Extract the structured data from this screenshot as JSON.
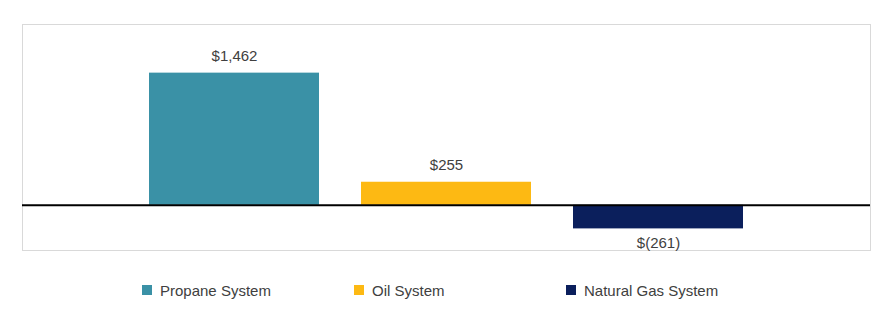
{
  "chart_data": {
    "type": "bar",
    "categories": [
      "Propane System",
      "Oil System",
      "Natural Gas System"
    ],
    "values": [
      1462,
      255,
      -261
    ],
    "value_labels": [
      "$1,462",
      "$255",
      "$(261)"
    ],
    "colors": [
      "#3a91a6",
      "#fdb913",
      "#0b1f5c"
    ],
    "ylim": [
      -500,
      2000
    ],
    "yticks": [
      0
    ],
    "tick_labels": false,
    "data_labels": true,
    "legend": "bottom",
    "grid": false
  }
}
